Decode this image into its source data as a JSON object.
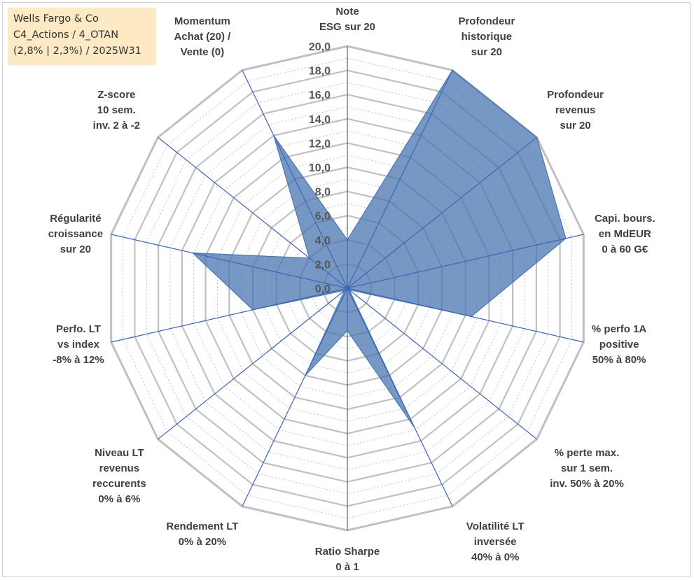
{
  "info_box": {
    "line1": "Wells Fargo & Co",
    "line2": "C4_Actions / 4_OTAN",
    "line3": "(2,8% | 2,3%) / 2025W31"
  },
  "colors": {
    "fill": "#4a76b0",
    "axis_line": "#3c66b8",
    "ring": "#c0c0c0",
    "info_bg": "#fde9c3"
  },
  "chart_data": {
    "type": "radar",
    "title": "",
    "rlim": [
      0,
      20
    ],
    "grid": true,
    "tick_labels": [
      "0,0",
      "2,0",
      "4,0",
      "6,0",
      "8,0",
      "10,0",
      "12,0",
      "14,0",
      "16,0",
      "18,0",
      "20,0"
    ],
    "axes": [
      {
        "lines": [
          "Note",
          "ESG sur 20"
        ]
      },
      {
        "lines": [
          "Profondeur",
          "historique",
          "sur 20"
        ]
      },
      {
        "lines": [
          "Profondeur",
          "revenus",
          "sur 20"
        ]
      },
      {
        "lines": [
          "Capi. bours.",
          "en MdEUR",
          "0 à 60 G€"
        ]
      },
      {
        "lines": [
          "% perfo 1A",
          "positive",
          "50% à 80%"
        ]
      },
      {
        "lines": [
          "% perte max.",
          "sur 1 sem.",
          "inv. 50% à 20%"
        ]
      },
      {
        "lines": [
          "Volatilité LT",
          "inversée",
          "40% à 0%"
        ]
      },
      {
        "lines": [
          "Ratio Sharpe",
          "0 à 1"
        ]
      },
      {
        "lines": [
          "Rendement LT",
          "0% à 20%"
        ]
      },
      {
        "lines": [
          "Niveau LT",
          "revenus",
          "reccurents",
          "0% à 6%"
        ]
      },
      {
        "lines": [
          "Perfo. LT",
          "vs index",
          "-8% à 12%"
        ]
      },
      {
        "lines": [
          "Régularité",
          "croissance",
          "sur 20"
        ]
      },
      {
        "lines": [
          "Z-score",
          "10 sem.",
          "inv. 2 à -2"
        ]
      },
      {
        "lines": [
          "Momentum",
          "Achat (20) /",
          "Vente (0)"
        ]
      }
    ],
    "values": [
      4.0,
      20.0,
      20.0,
      18.5,
      10.5,
      0.2,
      12.8,
      3.5,
      8.0,
      0.3,
      8.0,
      13.1,
      4.0,
      14.0
    ]
  }
}
